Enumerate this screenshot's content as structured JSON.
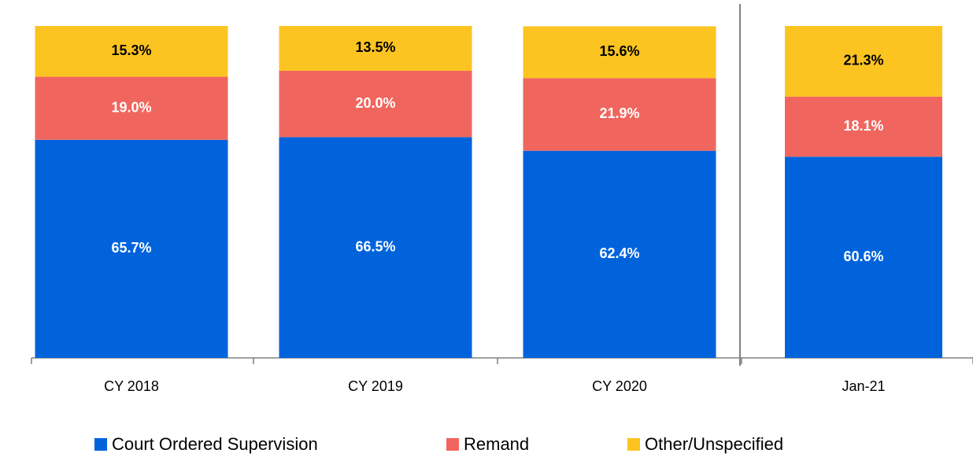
{
  "chart_data": {
    "type": "stacked_bar",
    "categories": [
      "CY 2018",
      "CY 2019",
      "CY 2020",
      "Jan-21"
    ],
    "series": [
      {
        "name": "Court Ordered Supervision",
        "color": "#0063dc",
        "values": [
          65.7,
          66.5,
          62.4,
          60.6
        ],
        "value_labels": [
          "65.7%",
          "66.5%",
          "62.4%",
          "60.6%"
        ]
      },
      {
        "name": "Remand",
        "color": "#f0665e",
        "values": [
          19.0,
          20.0,
          21.9,
          18.1
        ],
        "value_labels": [
          "19.0%",
          "20.0%",
          "21.9%",
          "18.1%"
        ]
      },
      {
        "name": "Other/Unspecified",
        "color": "#fcc421",
        "values": [
          15.3,
          13.5,
          15.6,
          21.3
        ],
        "value_labels": [
          "15.3%",
          "13.5%",
          "15.6%",
          "21.3%"
        ]
      }
    ],
    "ylim": [
      0,
      100
    ]
  }
}
